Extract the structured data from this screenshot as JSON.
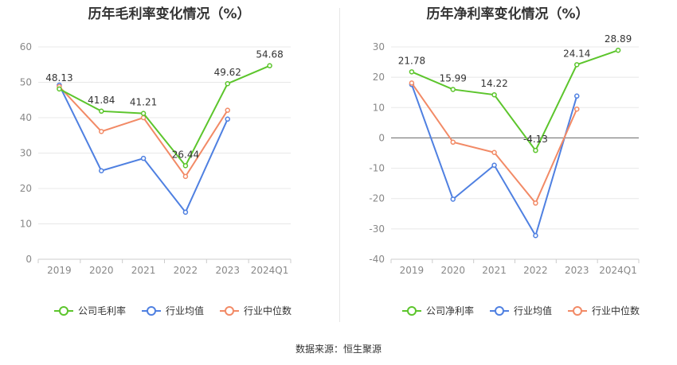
{
  "source_label": "数据来源：恒生聚源",
  "chart_data": [
    {
      "type": "line",
      "title": "历年毛利率变化情况（%）",
      "categories": [
        "2019",
        "2020",
        "2021",
        "2022",
        "2023",
        "2024Q1"
      ],
      "ylim": [
        0,
        60
      ],
      "yticks": [
        0,
        10,
        20,
        30,
        40,
        50,
        60
      ],
      "grid": true,
      "legend": "bottom",
      "series": [
        {
          "name": "公司毛利率",
          "color": "#5cc52c",
          "values": [
            48.13,
            41.84,
            41.21,
            26.44,
            49.62,
            54.68
          ],
          "labels": [
            "48.13",
            "41.84",
            "41.21",
            "26.44",
            "49.62",
            "54.68"
          ]
        },
        {
          "name": "行业均值",
          "color": "#4f80e1",
          "values": [
            49.2,
            25.0,
            28.5,
            13.3,
            39.6,
            null
          ]
        },
        {
          "name": "行业中位数",
          "color": "#f28a66",
          "values": [
            48.8,
            36.1,
            40.0,
            23.4,
            42.1,
            null
          ]
        }
      ]
    },
    {
      "type": "line",
      "title": "历年净利率变化情况（%）",
      "categories": [
        "2019",
        "2020",
        "2021",
        "2022",
        "2023",
        "2024Q1"
      ],
      "ylim": [
        -40,
        30
      ],
      "yticks": [
        -40,
        -30,
        -20,
        -10,
        0,
        10,
        20,
        30
      ],
      "grid": true,
      "legend": "bottom",
      "series": [
        {
          "name": "公司净利率",
          "color": "#5cc52c",
          "values": [
            21.78,
            15.99,
            14.22,
            -4.13,
            24.14,
            28.89
          ],
          "labels": [
            "21.78",
            "15.99",
            "14.22",
            "-4.13",
            "24.14",
            "28.89"
          ]
        },
        {
          "name": "行业均值",
          "color": "#4f80e1",
          "values": [
            17.6,
            -20.2,
            -9.0,
            -32.2,
            13.8,
            null
          ]
        },
        {
          "name": "行业中位数",
          "color": "#f28a66",
          "values": [
            18.1,
            -1.4,
            -4.8,
            -21.5,
            9.5,
            null
          ]
        }
      ]
    }
  ]
}
